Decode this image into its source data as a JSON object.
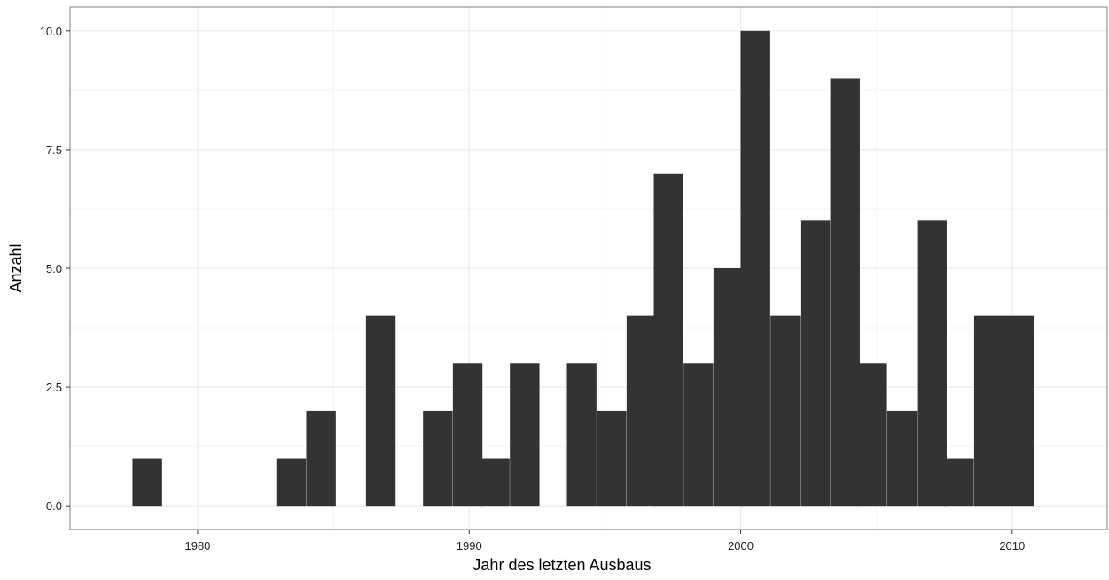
{
  "chart_data": {
    "type": "bar",
    "subtype": "histogram",
    "xlabel": "Jahr des letzten Ausbaus",
    "ylabel": "Anzahl",
    "x_ticks": [
      1980,
      1990,
      2000,
      2010
    ],
    "y_ticks": [
      "0.0",
      "2.5",
      "5.0",
      "7.5",
      "10.0"
    ],
    "y_tick_values": [
      0,
      2.5,
      5,
      7.5,
      10
    ],
    "xlim": [
      1975.3,
      2013.5
    ],
    "ylim": [
      -0.5,
      10.5
    ],
    "bin_width": 1.07,
    "bins": [
      {
        "start": 1977.6,
        "count": 1
      },
      {
        "start": 1978.7,
        "count": 0
      },
      {
        "start": 1979.7,
        "count": 0
      },
      {
        "start": 1980.8,
        "count": 0
      },
      {
        "start": 1981.9,
        "count": 0
      },
      {
        "start": 1982.9,
        "count": 1
      },
      {
        "start": 1984.0,
        "count": 2
      },
      {
        "start": 1985.1,
        "count": 0
      },
      {
        "start": 1986.2,
        "count": 4
      },
      {
        "start": 1987.2,
        "count": 0
      },
      {
        "start": 1988.3,
        "count": 2
      },
      {
        "start": 1989.4,
        "count": 3
      },
      {
        "start": 1990.4,
        "count": 1
      },
      {
        "start": 1991.5,
        "count": 3
      },
      {
        "start": 1992.6,
        "count": 0
      },
      {
        "start": 1993.6,
        "count": 3
      },
      {
        "start": 1994.7,
        "count": 2
      },
      {
        "start": 1995.8,
        "count": 4
      },
      {
        "start": 1996.8,
        "count": 7
      },
      {
        "start": 1997.9,
        "count": 3
      },
      {
        "start": 1999.0,
        "count": 5
      },
      {
        "start": 2000.0,
        "count": 10
      },
      {
        "start": 2001.1,
        "count": 4
      },
      {
        "start": 2002.2,
        "count": 6
      },
      {
        "start": 2003.3,
        "count": 9
      },
      {
        "start": 2004.3,
        "count": 3
      },
      {
        "start": 2005.4,
        "count": 2
      },
      {
        "start": 2006.5,
        "count": 6
      },
      {
        "start": 2007.5,
        "count": 1
      },
      {
        "start": 2008.6,
        "count": 4
      },
      {
        "start": 2009.7,
        "count": 4
      }
    ],
    "bar_color": "#333333",
    "panel_background": "#ffffff",
    "grid": true,
    "grid_color": "#ebebeb",
    "panel_border_color": "#7f7f7f",
    "legend": "none"
  }
}
